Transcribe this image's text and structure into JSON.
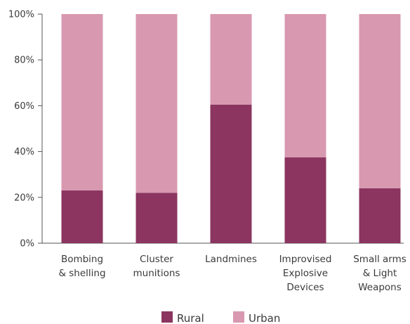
{
  "chart_data": {
    "type": "bar",
    "stacked": true,
    "categories": [
      [
        "Bombing",
        "& shelling"
      ],
      [
        "Cluster",
        "munitions"
      ],
      [
        "Landmines"
      ],
      [
        "Improvised",
        "Explosive",
        "Devices"
      ],
      [
        "Small arms",
        "& Light",
        "Weapons"
      ]
    ],
    "series": [
      {
        "name": "Rural",
        "color": "#8b3560",
        "values": [
          23,
          22,
          60.5,
          37.5,
          24
        ]
      },
      {
        "name": "Urban",
        "color": "#d898b0",
        "values": [
          77,
          78,
          39.5,
          62.5,
          76
        ]
      }
    ],
    "ylim": [
      0,
      100
    ],
    "yticks": [
      "0%",
      "20%",
      "40%",
      "60%",
      "80%",
      "100%"
    ],
    "ytick_values": [
      0,
      20,
      40,
      60,
      80,
      100
    ],
    "legend_position": "bottom",
    "grid": false,
    "title": "",
    "xlabel": "",
    "ylabel": ""
  }
}
